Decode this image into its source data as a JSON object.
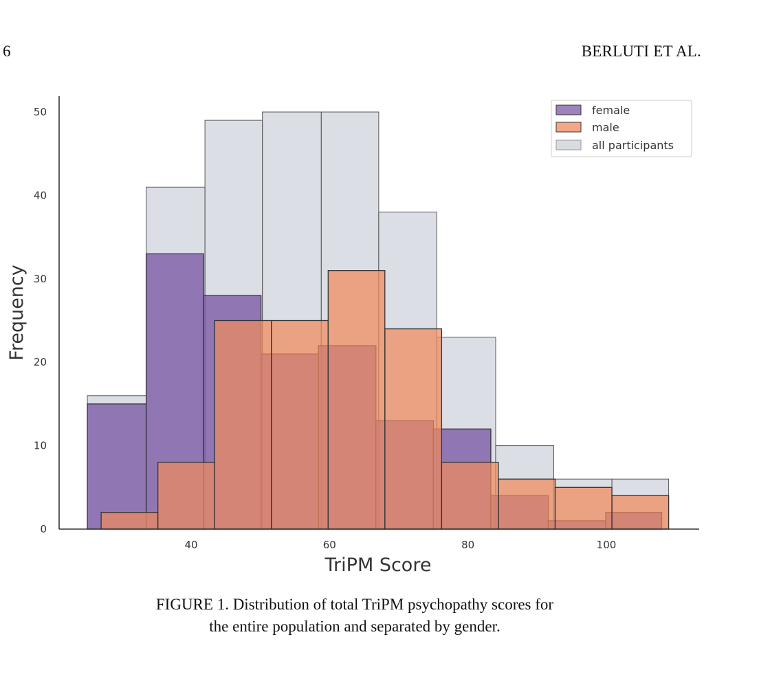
{
  "header": {
    "page_number": "6",
    "running_head": "BERLUTI ET AL."
  },
  "caption": {
    "line1": "FIGURE 1. Distribution of total TriPM psychopathy scores for",
    "line2": "the entire population and separated by gender."
  },
  "colors": {
    "female": "#7b5aa6",
    "male": "#f08a5d",
    "all": "#c7cdd6",
    "edge": "#333333"
  },
  "chart_data": {
    "type": "bar",
    "histogram": true,
    "title": "",
    "xlabel": "TriPM Score",
    "ylabel": "Frequency",
    "xlim": [
      21,
      113
    ],
    "ylim": [
      0,
      52
    ],
    "xticks": [
      40,
      60,
      80,
      100
    ],
    "yticks": [
      0,
      10,
      20,
      30,
      40,
      50
    ],
    "legend_position": "top-right",
    "grid": false,
    "series": [
      {
        "name": "all participants",
        "color_key": "all",
        "bins": [
          {
            "x0": 25.0,
            "x1": 33.5,
            "value": 16
          },
          {
            "x0": 33.5,
            "x1": 42.0,
            "value": 41
          },
          {
            "x0": 42.0,
            "x1": 50.3,
            "value": 49
          },
          {
            "x0": 50.3,
            "x1": 58.8,
            "value": 50
          },
          {
            "x0": 58.8,
            "x1": 67.1,
            "value": 50
          },
          {
            "x0": 67.1,
            "x1": 75.5,
            "value": 38
          },
          {
            "x0": 75.5,
            "x1": 84.0,
            "value": 23
          },
          {
            "x0": 84.0,
            "x1": 92.4,
            "value": 10
          },
          {
            "x0": 92.4,
            "x1": 100.8,
            "value": 6
          },
          {
            "x0": 100.8,
            "x1": 109.0,
            "value": 6
          }
        ]
      },
      {
        "name": "female",
        "color_key": "female",
        "bins": [
          {
            "x0": 25.0,
            "x1": 33.5,
            "value": 15
          },
          {
            "x0": 33.5,
            "x1": 41.8,
            "value": 33
          },
          {
            "x0": 41.8,
            "x1": 50.1,
            "value": 28
          },
          {
            "x0": 50.1,
            "x1": 58.4,
            "value": 21
          },
          {
            "x0": 58.4,
            "x1": 66.7,
            "value": 22
          },
          {
            "x0": 66.7,
            "x1": 75.0,
            "value": 13
          },
          {
            "x0": 75.0,
            "x1": 83.3,
            "value": 12
          },
          {
            "x0": 83.3,
            "x1": 91.6,
            "value": 4
          },
          {
            "x0": 91.6,
            "x1": 99.9,
            "value": 1
          },
          {
            "x0": 99.9,
            "x1": 108.0,
            "value": 2
          }
        ]
      },
      {
        "name": "male",
        "color_key": "male",
        "bins": [
          {
            "x0": 27.0,
            "x1": 35.2,
            "value": 2
          },
          {
            "x0": 35.2,
            "x1": 43.4,
            "value": 8
          },
          {
            "x0": 43.4,
            "x1": 51.6,
            "value": 25
          },
          {
            "x0": 51.6,
            "x1": 59.8,
            "value": 25
          },
          {
            "x0": 59.8,
            "x1": 68.0,
            "value": 31
          },
          {
            "x0": 68.0,
            "x1": 76.2,
            "value": 24
          },
          {
            "x0": 76.2,
            "x1": 84.4,
            "value": 8
          },
          {
            "x0": 84.4,
            "x1": 92.6,
            "value": 6
          },
          {
            "x0": 92.6,
            "x1": 100.8,
            "value": 5
          },
          {
            "x0": 100.8,
            "x1": 109.0,
            "value": 4
          }
        ]
      }
    ],
    "legend": [
      "female",
      "male",
      "all participants"
    ]
  }
}
